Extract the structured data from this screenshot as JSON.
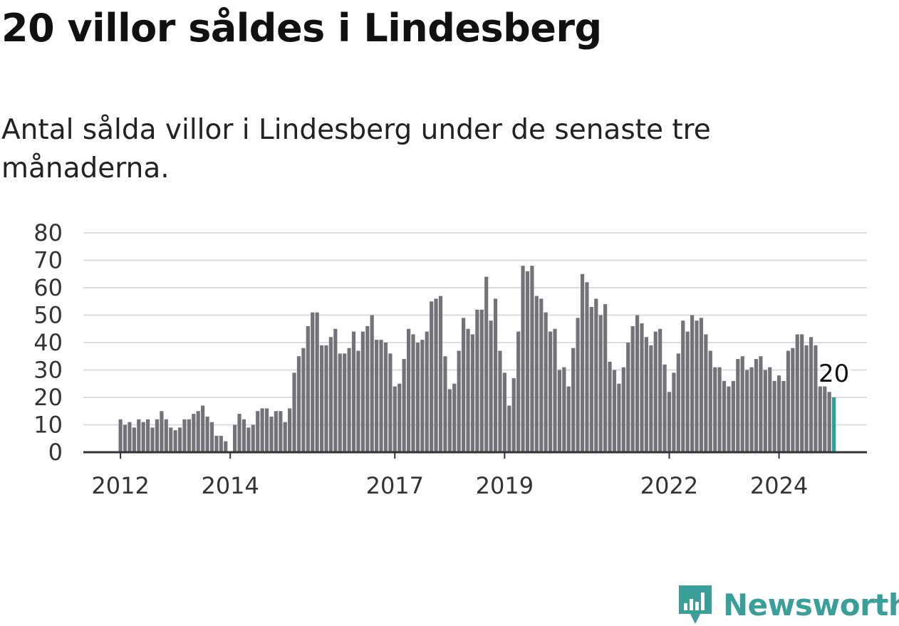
{
  "header": {
    "title": "20 villor såldes i Lindesberg",
    "subtitle": "Antal sålda villor i Lindesberg under de senaste tre månaderna."
  },
  "branding": {
    "name": "Newsworthy",
    "icon": "newsworthy-logo-icon"
  },
  "colors": {
    "bar": "#737278",
    "highlight": "#2aa198",
    "grid": "#dcdcdc",
    "axis": "#333333",
    "brand": "#3a9f98"
  },
  "chart_data": {
    "type": "bar",
    "title": "20 villor såldes i Lindesberg",
    "subtitle": "Antal sålda villor i Lindesberg under de senaste tre månaderna.",
    "xlabel": "",
    "ylabel": "",
    "ylim": [
      0,
      80
    ],
    "yticks": [
      0,
      10,
      20,
      30,
      40,
      50,
      60,
      70,
      80
    ],
    "grid": true,
    "legend": "none",
    "x_start": "2012-01",
    "x_end": "2024-12",
    "xtick_labels": [
      {
        "label": "2012",
        "x": "2012-01"
      },
      {
        "label": "2014",
        "x": "2014-01"
      },
      {
        "label": "2017",
        "x": "2017-01"
      },
      {
        "label": "2019",
        "x": "2019-01"
      },
      {
        "label": "2022",
        "x": "2022-01"
      },
      {
        "label": "2024",
        "x": "2024-01"
      }
    ],
    "values": [
      12,
      10,
      11,
      9,
      12,
      11,
      12,
      9,
      12,
      15,
      12,
      9,
      8,
      9,
      12,
      12,
      14,
      15,
      17,
      13,
      11,
      6,
      6,
      4,
      null,
      10,
      14,
      12,
      9,
      10,
      15,
      16,
      16,
      13,
      15,
      15,
      11,
      16,
      29,
      35,
      38,
      46,
      51,
      51,
      39,
      39,
      42,
      45,
      36,
      36,
      38,
      44,
      37,
      44,
      46,
      50,
      41,
      41,
      40,
      36,
      24,
      25,
      34,
      45,
      43,
      40,
      41,
      44,
      55,
      56,
      57,
      35,
      23,
      25,
      37,
      49,
      45,
      43,
      52,
      52,
      64,
      48,
      56,
      37,
      29,
      17,
      27,
      44,
      68,
      66,
      68,
      57,
      56,
      51,
      44,
      45,
      30,
      31,
      24,
      38,
      49,
      65,
      62,
      53,
      56,
      50,
      54,
      33,
      30,
      25,
      31,
      40,
      46,
      50,
      47,
      42,
      39,
      44,
      45,
      32,
      22,
      29,
      36,
      48,
      44,
      50,
      48,
      49,
      43,
      37,
      31,
      31,
      26,
      24,
      26,
      34,
      35,
      30,
      31,
      34,
      35,
      30,
      31,
      26,
      28,
      26,
      37,
      38,
      43,
      43,
      39,
      42,
      39,
      24,
      24,
      22,
      20
    ],
    "highlight": {
      "label": "20",
      "value": 20
    }
  }
}
